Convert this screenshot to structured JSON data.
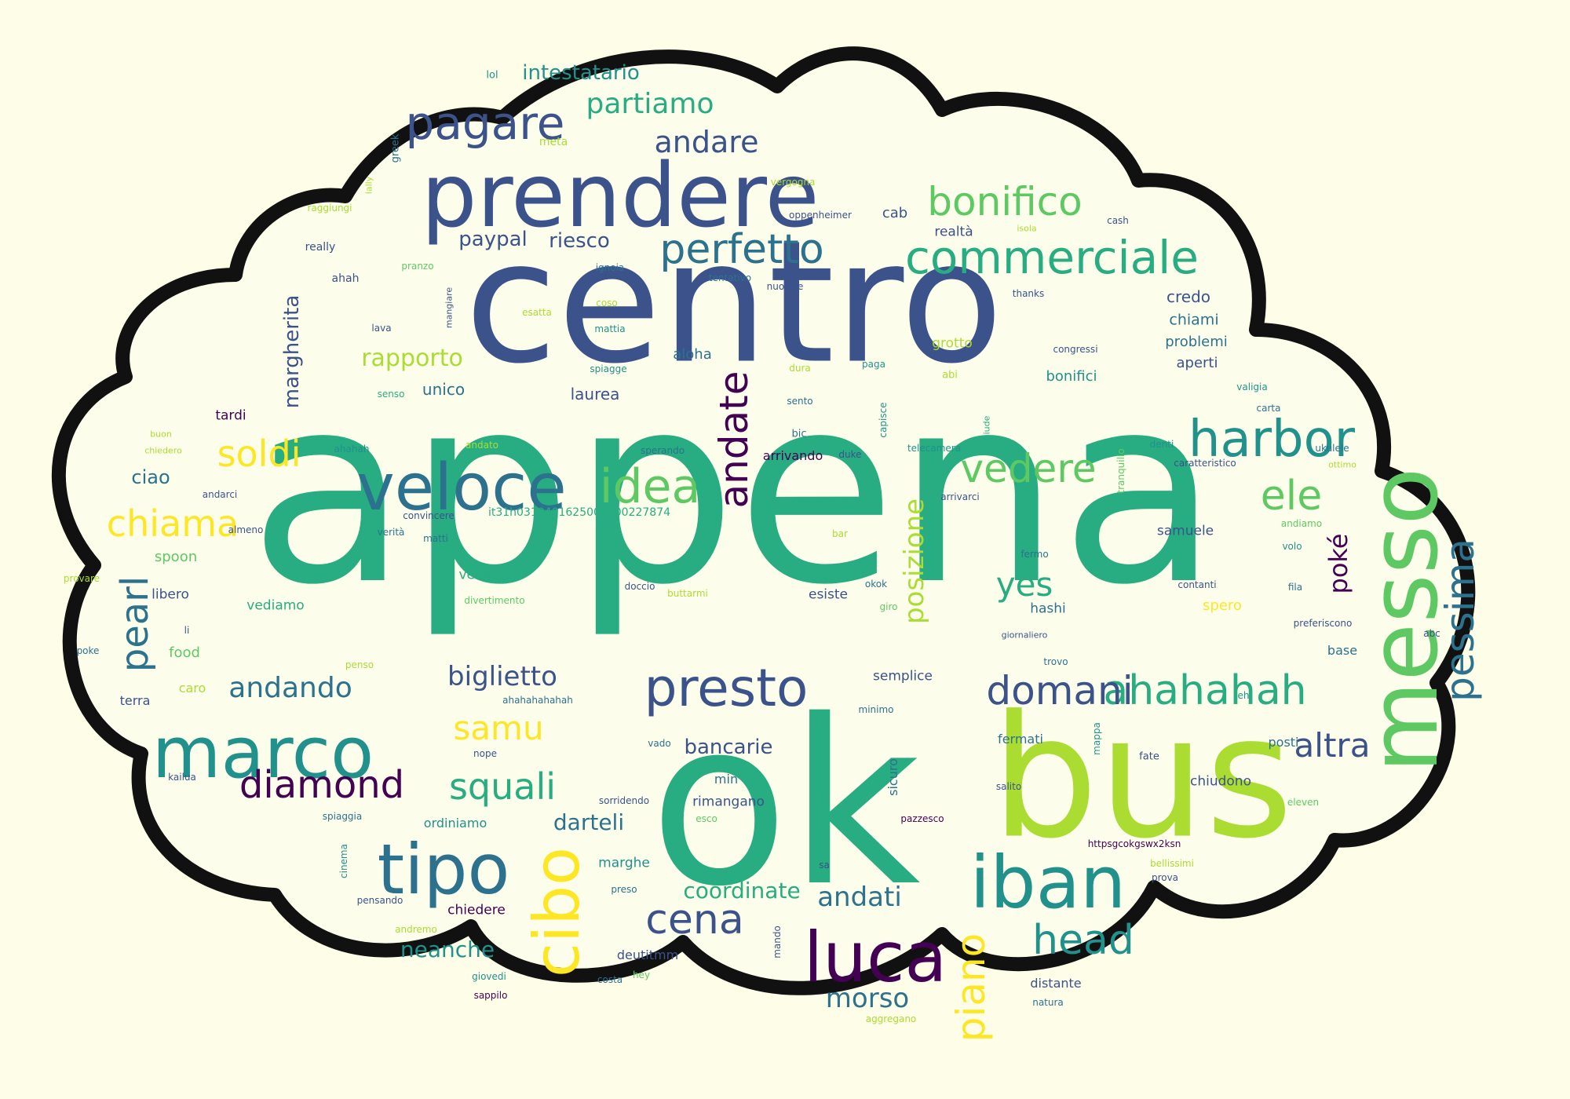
{
  "palette": {
    "background": "#fdfde8",
    "cloud_fill": "#fdfdeb",
    "cloud_outline": "#111111",
    "c0": "#440154",
    "c1": "#3b528b",
    "c2": "#2c728e",
    "c3": "#21918c",
    "c4": "#27ad81",
    "c5": "#5ec962",
    "c6": "#aadc32",
    "c7": "#fde725"
  },
  "words": [
    {
      "t": "appena",
      "c": "c4"
    },
    {
      "t": "centro",
      "c": "c1"
    },
    {
      "t": "ok",
      "c": "c4"
    },
    {
      "t": "bus",
      "c": "c6"
    },
    {
      "t": "prendere",
      "c": "c1"
    },
    {
      "t": "messo",
      "c": "c5"
    },
    {
      "t": "marco",
      "c": "c3"
    },
    {
      "t": "iban",
      "c": "c3"
    },
    {
      "t": "veloce",
      "c": "c2"
    },
    {
      "t": "tipo",
      "c": "c2"
    },
    {
      "t": "luca",
      "c": "c0"
    },
    {
      "t": "harbor",
      "c": "c3"
    },
    {
      "t": "commerciale",
      "c": "c4"
    },
    {
      "t": "presto",
      "c": "c1"
    },
    {
      "t": "perfetto",
      "c": "c2"
    },
    {
      "t": "cibo",
      "c": "c7"
    },
    {
      "t": "idea",
      "c": "c5"
    },
    {
      "t": "pagare",
      "c": "c1"
    },
    {
      "t": "bonifico",
      "c": "c5"
    },
    {
      "t": "ahahahah",
      "c": "c4"
    },
    {
      "t": "domani",
      "c": "c1"
    },
    {
      "t": "vedere",
      "c": "c5"
    },
    {
      "t": "pessima",
      "c": "c2"
    },
    {
      "t": "andate",
      "c": "c0"
    },
    {
      "t": "diamond",
      "c": "c0"
    },
    {
      "t": "ele",
      "c": "c5"
    },
    {
      "t": "chiama",
      "c": "c7"
    },
    {
      "t": "cena",
      "c": "c1"
    },
    {
      "t": "head",
      "c": "c3"
    },
    {
      "t": "squali",
      "c": "c4"
    },
    {
      "t": "pearl",
      "c": "c2"
    },
    {
      "t": "andando",
      "c": "c2"
    },
    {
      "t": "samu",
      "c": "c7"
    },
    {
      "t": "partiamo",
      "c": "c4"
    },
    {
      "t": "soldi",
      "c": "c7"
    },
    {
      "t": "andare",
      "c": "c1"
    },
    {
      "t": "piano",
      "c": "c7"
    },
    {
      "t": "altra",
      "c": "c1"
    },
    {
      "t": "yes",
      "c": "c4"
    },
    {
      "t": "biglietto",
      "c": "c1"
    },
    {
      "t": "andati",
      "c": "c2"
    },
    {
      "t": "morso",
      "c": "c2"
    },
    {
      "t": "posizione",
      "c": "c6"
    },
    {
      "t": "intestatario",
      "c": "c3"
    },
    {
      "t": "rapporto",
      "c": "c6"
    },
    {
      "t": "margherita",
      "c": "c1"
    },
    {
      "t": "darteli",
      "c": "c2"
    },
    {
      "t": "coordinate",
      "c": "c4"
    },
    {
      "t": "neanche",
      "c": "c3"
    },
    {
      "t": "poké",
      "c": "c0"
    },
    {
      "t": "paypal",
      "c": "c1"
    },
    {
      "t": "riesco",
      "c": "c1"
    },
    {
      "t": "bancarie",
      "c": "c1"
    },
    {
      "t": "credo",
      "c": "c1"
    },
    {
      "t": "chiami",
      "c": "c2"
    },
    {
      "t": "problemi",
      "c": "c2"
    },
    {
      "t": "aperti",
      "c": "c1"
    },
    {
      "t": "bonifici",
      "c": "c3"
    },
    {
      "t": "laurea",
      "c": "c1"
    },
    {
      "t": "unico",
      "c": "c2"
    },
    {
      "t": "aloha",
      "c": "c2"
    },
    {
      "t": "cab",
      "c": "c1"
    },
    {
      "t": "realtà",
      "c": "c1"
    },
    {
      "t": "grotto",
      "c": "c6"
    },
    {
      "t": "ciao",
      "c": "c2"
    },
    {
      "t": "libero",
      "c": "c1"
    },
    {
      "t": "food",
      "c": "c5"
    },
    {
      "t": "spoon",
      "c": "c5"
    },
    {
      "t": "hashi",
      "c": "c2"
    },
    {
      "t": "samuele",
      "c": "c1"
    },
    {
      "t": "venire",
      "c": "c4"
    },
    {
      "t": "vediamo",
      "c": "c4"
    },
    {
      "t": "esiste",
      "c": "c1"
    },
    {
      "t": "spero",
      "c": "c7"
    },
    {
      "t": "semplice",
      "c": "c1"
    },
    {
      "t": "rimangano",
      "c": "c1"
    },
    {
      "t": "deutitmm",
      "c": "c1"
    },
    {
      "t": "distante",
      "c": "c1"
    },
    {
      "t": "chiedere",
      "c": "c0"
    },
    {
      "t": "chiudono",
      "c": "c1"
    },
    {
      "t": "fermati",
      "c": "c2"
    },
    {
      "t": "posti",
      "c": "c2"
    },
    {
      "t": "marghe",
      "c": "c3"
    },
    {
      "t": "base",
      "c": "c2"
    },
    {
      "t": "tardi",
      "c": "c0"
    },
    {
      "t": "arrivando",
      "c": "c0"
    },
    {
      "t": "ordiniamo",
      "c": "c3"
    },
    {
      "t": "sicuro",
      "c": "c2"
    },
    {
      "t": "caro",
      "c": "c6"
    },
    {
      "t": "terra",
      "c": "c1"
    },
    {
      "t": "min",
      "c": "c2"
    },
    {
      "t": "it31h0310401625000000227874",
      "c": "c4"
    },
    {
      "t": "lol",
      "c": "c3"
    },
    {
      "t": "meta",
      "c": "c6"
    },
    {
      "t": "greek",
      "c": "c2"
    },
    {
      "t": "lally",
      "c": "c6"
    },
    {
      "t": "raggiungi",
      "c": "c6"
    },
    {
      "t": "vergogna",
      "c": "c6"
    },
    {
      "t": "oppenheimer",
      "c": "c1"
    },
    {
      "t": "cash",
      "c": "c1"
    },
    {
      "t": "isola",
      "c": "c6"
    },
    {
      "t": "really",
      "c": "c1"
    },
    {
      "t": "pranzo",
      "c": "c5"
    },
    {
      "t": "ignoia",
      "c": "c2"
    },
    {
      "t": "tentativo",
      "c": "c2"
    },
    {
      "t": "nuotare",
      "c": "c1"
    },
    {
      "t": "thanks",
      "c": "c1"
    },
    {
      "t": "ahah",
      "c": "c1"
    },
    {
      "t": "mangiare",
      "c": "c1"
    },
    {
      "t": "coso",
      "c": "c6"
    },
    {
      "t": "esatta",
      "c": "c6"
    },
    {
      "t": "mattia",
      "c": "c3"
    },
    {
      "t": "lava",
      "c": "c1"
    },
    {
      "t": "dato",
      "c": "c1"
    },
    {
      "t": "dura",
      "c": "c6"
    },
    {
      "t": "paga",
      "c": "c3"
    },
    {
      "t": "congressi",
      "c": "c1"
    },
    {
      "t": "spiagge",
      "c": "c3"
    },
    {
      "t": "abi",
      "c": "c6"
    },
    {
      "t": "valigia",
      "c": "c3"
    },
    {
      "t": "senso",
      "c": "c4"
    },
    {
      "t": "sento",
      "c": "c2"
    },
    {
      "t": "carta",
      "c": "c2"
    },
    {
      "t": "buon",
      "c": "c6"
    },
    {
      "t": "chiedero",
      "c": "c6"
    },
    {
      "t": "ahahah",
      "c": "c3"
    },
    {
      "t": "andato",
      "c": "c6"
    },
    {
      "t": "sperando",
      "c": "c2"
    },
    {
      "t": "bic",
      "c": "c2"
    },
    {
      "t": "duke",
      "c": "c1"
    },
    {
      "t": "capisce",
      "c": "c3"
    },
    {
      "t": "telecamera",
      "c": "c3"
    },
    {
      "t": "chiude",
      "c": "c4"
    },
    {
      "t": "denti",
      "c": "c3"
    },
    {
      "t": "tranquillo",
      "c": "c5"
    },
    {
      "t": "caratteristico",
      "c": "c1"
    },
    {
      "t": "ukulele",
      "c": "c2"
    },
    {
      "t": "ottimo",
      "c": "c6"
    },
    {
      "t": "andarci",
      "c": "c1"
    },
    {
      "t": "arrivarci",
      "c": "c1"
    },
    {
      "t": "convincere",
      "c": "c1"
    },
    {
      "t": "almeno",
      "c": "c1"
    },
    {
      "t": "verità",
      "c": "c2"
    },
    {
      "t": "matti",
      "c": "c2"
    },
    {
      "t": "bar",
      "c": "c6"
    },
    {
      "t": "andiamo",
      "c": "c5"
    },
    {
      "t": "fermo",
      "c": "c2"
    },
    {
      "t": "volo",
      "c": "c3"
    },
    {
      "t": "okok",
      "c": "c2"
    },
    {
      "t": "fila",
      "c": "c2"
    },
    {
      "t": "provare",
      "c": "c6"
    },
    {
      "t": "doccio",
      "c": "c1"
    },
    {
      "t": "buttarmi",
      "c": "c6"
    },
    {
      "t": "contanti",
      "c": "c1"
    },
    {
      "t": "divertimento",
      "c": "c5"
    },
    {
      "t": "giro",
      "c": "c5"
    },
    {
      "t": "li",
      "c": "c1"
    },
    {
      "t": "preferiscono",
      "c": "c1"
    },
    {
      "t": "giornaliero",
      "c": "c1"
    },
    {
      "t": "abc",
      "c": "c1"
    },
    {
      "t": "poke",
      "c": "c2"
    },
    {
      "t": "penso",
      "c": "c6"
    },
    {
      "t": "trovo",
      "c": "c2"
    },
    {
      "t": "ahahahahahah",
      "c": "c2"
    },
    {
      "t": "minimo",
      "c": "c2"
    },
    {
      "t": "mappa",
      "c": "c3"
    },
    {
      "t": "eh",
      "c": "c3"
    },
    {
      "t": "nope",
      "c": "c1"
    },
    {
      "t": "fate",
      "c": "c1"
    },
    {
      "t": "vado",
      "c": "c2"
    },
    {
      "t": "kailua",
      "c": "c1"
    },
    {
      "t": "sorridendo",
      "c": "c1"
    },
    {
      "t": "salito",
      "c": "c1"
    },
    {
      "t": "eleven",
      "c": "c5"
    },
    {
      "t": "spiaggia",
      "c": "c2"
    },
    {
      "t": "esco",
      "c": "c5"
    },
    {
      "t": "pazzesco",
      "c": "c0"
    },
    {
      "t": "https​gcokgswx2ksn",
      "c": "c0"
    },
    {
      "t": "cinema",
      "c": "c3"
    },
    {
      "t": "sa",
      "c": "c1"
    },
    {
      "t": "bellissimi",
      "c": "c6"
    },
    {
      "t": "preso",
      "c": "c2"
    },
    {
      "t": "prova",
      "c": "c1"
    },
    {
      "t": "pensando",
      "c": "c1"
    },
    {
      "t": "mando",
      "c": "c1"
    },
    {
      "t": "andremo",
      "c": "c6"
    },
    {
      "t": "giovedi",
      "c": "c3"
    },
    {
      "t": "costa",
      "c": "c2"
    },
    {
      "t": "hey",
      "c": "c5"
    },
    {
      "t": "sappilo",
      "c": "c0"
    },
    {
      "t": "natura",
      "c": "c2"
    },
    {
      "t": "aggregano",
      "c": "c6"
    }
  ]
}
